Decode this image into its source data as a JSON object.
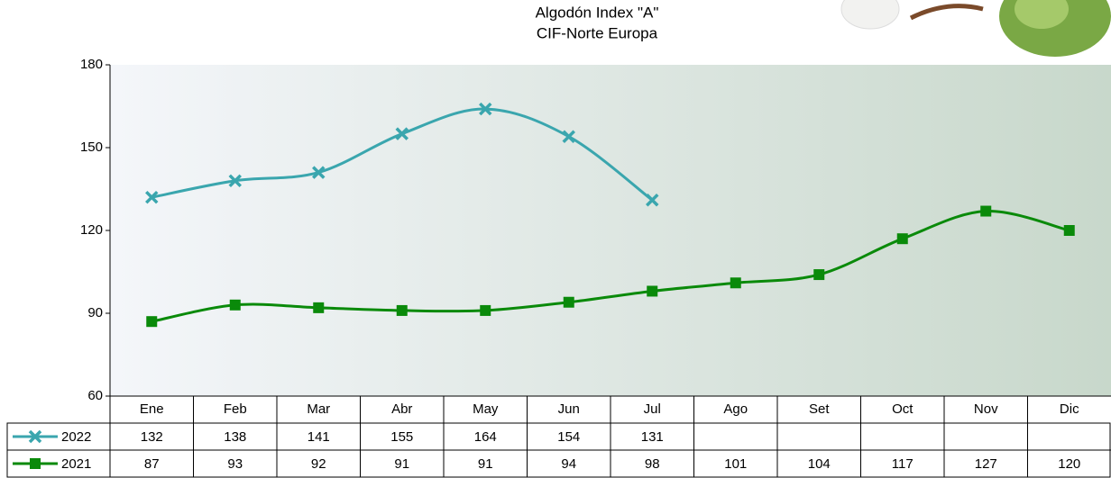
{
  "chart_data": {
    "type": "line",
    "title": "Algodón Index \"A\"",
    "subtitle": "CIF-Norte Europa",
    "categories": [
      "Ene",
      "Feb",
      "Mar",
      "Abr",
      "May",
      "Jun",
      "Jul",
      "Ago",
      "Set",
      "Oct",
      "Nov",
      "Dic"
    ],
    "series": [
      {
        "name": "2022",
        "color": "#3aa6ae",
        "marker": "x",
        "values": [
          132,
          138,
          141,
          155,
          164,
          154,
          131,
          null,
          null,
          null,
          null,
          null
        ]
      },
      {
        "name": "2021",
        "color": "#0a8a0a",
        "marker": "square",
        "values": [
          87,
          93,
          92,
          91,
          91,
          94,
          98,
          101,
          104,
          117,
          127,
          120
        ]
      }
    ],
    "ylim": [
      60,
      180
    ],
    "yticks": [
      60,
      90,
      120,
      150,
      180
    ],
    "grid": false,
    "data_table": true
  }
}
